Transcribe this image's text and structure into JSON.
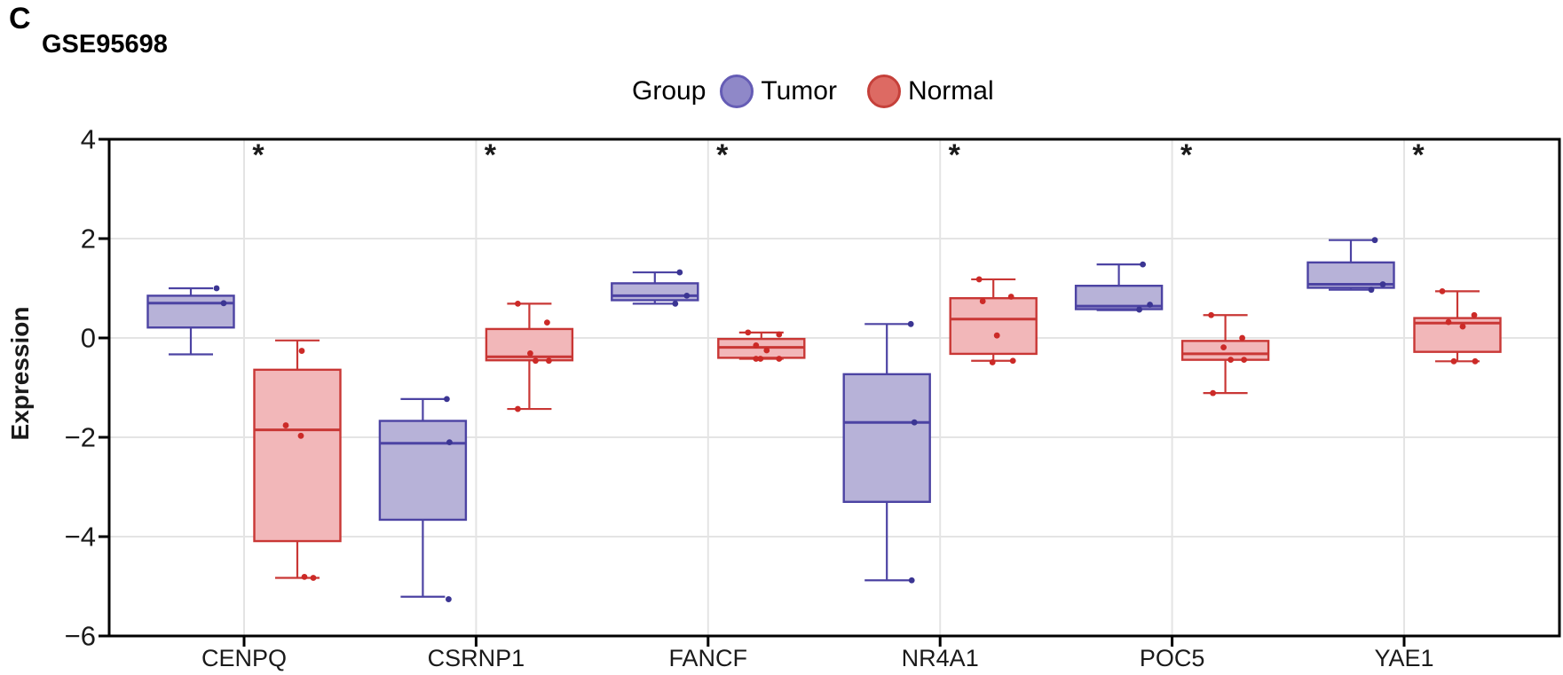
{
  "panel_label": "C",
  "title": "GSE95698",
  "legend": {
    "title": "Group",
    "items": [
      {
        "label": "Tumor",
        "fill": "#8f88c8",
        "stroke": "#655cb5"
      },
      {
        "label": "Normal",
        "fill": "#dd6a63",
        "stroke": "#c5403a"
      }
    ]
  },
  "y_axis": {
    "label": "Expression",
    "ticks": [
      4,
      2,
      0,
      -2,
      -4,
      -6
    ],
    "range": [
      -6,
      4
    ]
  },
  "x_axis": {
    "categories": [
      "CENPQ",
      "CSRNP1",
      "FANCF",
      "NR4A1",
      "POC5",
      "YAE1"
    ]
  },
  "significance_marker": "*",
  "colors": {
    "grid": "#e4e4e4",
    "axis": "#000000",
    "text": "#1a1a1a",
    "tumor_box_stroke": "#4c43a3",
    "tumor_box_fill": "#b7b2d8",
    "tumor_point": "#3b3593",
    "normal_box_stroke": "#c93735",
    "normal_box_fill": "#f2b7b9",
    "normal_point": "#cc2a27"
  },
  "chart_data": {
    "type": "boxplot",
    "title": "GSE95698",
    "xlabel": "",
    "ylabel": "Expression",
    "ylim": [
      -6,
      4
    ],
    "grid": true,
    "legend_position": "top",
    "categories": [
      "CENPQ",
      "CSRNP1",
      "FANCF",
      "NR4A1",
      "POC5",
      "YAE1"
    ],
    "significance": [
      "*",
      "*",
      "*",
      "*",
      "*",
      "*"
    ],
    "series": [
      {
        "name": "Tumor",
        "boxes": [
          {
            "low": -0.33,
            "q1": 0.21,
            "median": 0.7,
            "q3": 0.85,
            "high": 1.0,
            "points": [
              [
                29,
                1.0
              ],
              [
                37,
                0.7
              ]
            ]
          },
          {
            "low": -5.21,
            "q1": -3.66,
            "median": -2.12,
            "q3": -1.67,
            "high": -1.23,
            "points": [
              [
                27,
                -1.23
              ],
              [
                30,
                -2.1
              ],
              [
                29,
                -5.26
              ]
            ]
          },
          {
            "low": 0.69,
            "q1": 0.76,
            "median": 0.85,
            "q3": 1.1,
            "high": 1.32,
            "points": [
              [
                28,
                1.32
              ],
              [
                36,
                0.85
              ],
              [
                23,
                0.69
              ]
            ]
          },
          {
            "low": -4.88,
            "q1": -3.3,
            "median": -1.7,
            "q3": -0.73,
            "high": 0.28,
            "points": [
              [
                27,
                0.28
              ],
              [
                31,
                -1.7
              ],
              [
                28,
                -4.88
              ]
            ]
          },
          {
            "low": 0.56,
            "q1": 0.58,
            "median": 0.64,
            "q3": 1.05,
            "high": 1.48,
            "points": [
              [
                27,
                1.48
              ],
              [
                35,
                0.67
              ],
              [
                23,
                0.57
              ]
            ]
          },
          {
            "low": 0.97,
            "q1": 1.01,
            "median": 1.08,
            "q3": 1.52,
            "high": 1.97,
            "points": [
              [
                27,
                1.97
              ],
              [
                36,
                1.08
              ],
              [
                23,
                0.97
              ]
            ]
          }
        ]
      },
      {
        "name": "Normal",
        "boxes": [
          {
            "low": -4.83,
            "q1": -4.09,
            "median": -1.85,
            "q3": -0.64,
            "high": -0.05,
            "points": [
              [
                5,
                -0.26
              ],
              [
                -13,
                -1.76
              ],
              [
                4,
                -1.97
              ],
              [
                8,
                -4.81
              ],
              [
                18,
                -4.83
              ]
            ]
          },
          {
            "low": -1.43,
            "q1": -0.45,
            "median": -0.38,
            "q3": 0.18,
            "high": 0.69,
            "points": [
              [
                -13,
                0.69
              ],
              [
                20,
                0.31
              ],
              [
                1,
                -0.31
              ],
              [
                7,
                -0.46
              ],
              [
                22,
                -0.46
              ],
              [
                -13,
                -1.43
              ]
            ]
          },
          {
            "low": -0.42,
            "q1": -0.4,
            "median": -0.19,
            "q3": -0.02,
            "high": 0.11,
            "points": [
              [
                -15,
                0.11
              ],
              [
                20,
                0.07
              ],
              [
                -6,
                -0.15
              ],
              [
                6,
                -0.25
              ],
              [
                -6,
                -0.42
              ],
              [
                -1,
                -0.42
              ],
              [
                20,
                -0.42
              ]
            ]
          },
          {
            "low": -0.46,
            "q1": -0.32,
            "median": 0.38,
            "q3": 0.8,
            "high": 1.18,
            "points": [
              [
                -16,
                1.18
              ],
              [
                20,
                0.83
              ],
              [
                -12,
                0.74
              ],
              [
                4,
                0.05
              ],
              [
                -1,
                -0.49
              ],
              [
                22,
                -0.46
              ]
            ]
          },
          {
            "low": -1.11,
            "q1": -0.44,
            "median": -0.32,
            "q3": -0.06,
            "high": 0.46,
            "points": [
              [
                -16,
                0.46
              ],
              [
                19,
                0.0
              ],
              [
                -2,
                -0.19
              ],
              [
                6,
                -0.44
              ],
              [
                21,
                -0.44
              ],
              [
                -14,
                -1.11
              ]
            ]
          },
          {
            "low": -0.47,
            "q1": -0.28,
            "median": 0.3,
            "q3": 0.4,
            "high": 0.94,
            "points": [
              [
                -17,
                0.94
              ],
              [
                19,
                0.46
              ],
              [
                -10,
                0.32
              ],
              [
                6,
                0.23
              ],
              [
                -4,
                -0.47
              ],
              [
                20,
                -0.47
              ]
            ]
          }
        ]
      }
    ]
  }
}
